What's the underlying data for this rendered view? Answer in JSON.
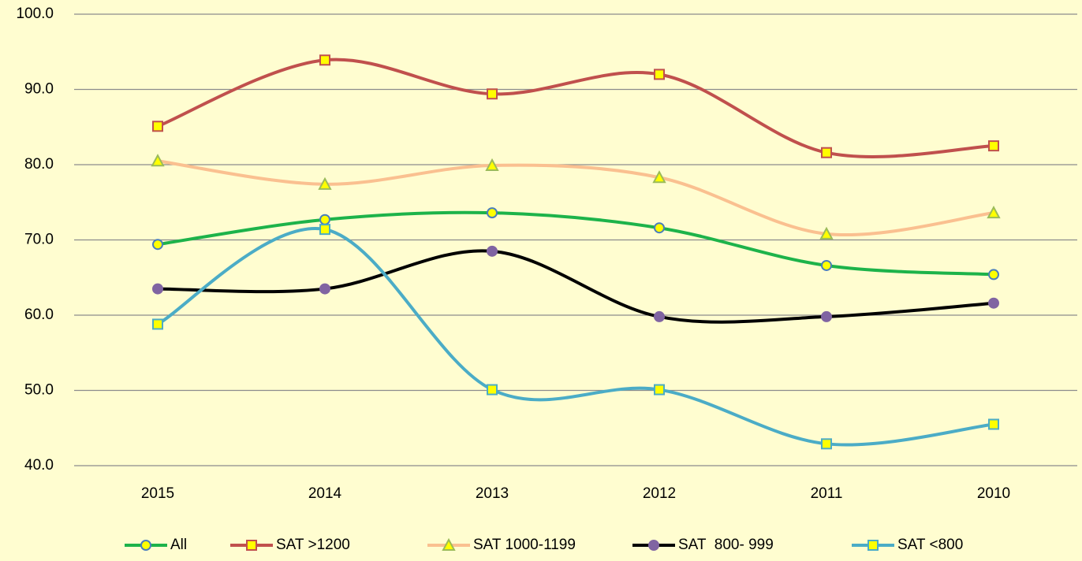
{
  "chart_data": {
    "type": "line",
    "categories": [
      "2015",
      "2014",
      "2013",
      "2012",
      "2011",
      "2010"
    ],
    "ylim": [
      40,
      100
    ],
    "yticks": [
      {
        "value": 40,
        "label": "40.0"
      },
      {
        "value": 50,
        "label": "50.0"
      },
      {
        "value": 60,
        "label": "60.0"
      },
      {
        "value": 70,
        "label": "70.0"
      },
      {
        "value": 80,
        "label": "80.0"
      },
      {
        "value": 90,
        "label": "90.0"
      },
      {
        "value": 100,
        "label": "100.0"
      }
    ],
    "grid": true,
    "smooth": true,
    "legend": "bottom",
    "series": [
      {
        "name": "All",
        "color": "#1db34a",
        "marker": "circle",
        "marker_fill": "#ffff00",
        "marker_edge": "#4a7ebb",
        "values": [
          69.4,
          72.7,
          73.6,
          71.6,
          66.6,
          65.4
        ]
      },
      {
        "name": "SAT >1200",
        "color": "#c0504d",
        "marker": "square",
        "marker_fill": "#ffff00",
        "marker_edge": "#c0504d",
        "values": [
          85.1,
          93.9,
          89.4,
          92.0,
          81.6,
          82.5
        ]
      },
      {
        "name": "SAT 1000-1199",
        "color": "#fac090",
        "marker": "triangle",
        "marker_fill": "#ffff00",
        "marker_edge": "#9bbb59",
        "values": [
          80.5,
          77.4,
          79.9,
          78.3,
          70.8,
          73.6
        ]
      },
      {
        "name": "SAT  800- 999",
        "color": "#000000",
        "marker": "circle",
        "marker_fill": "#8064a2",
        "marker_edge": "#8064a2",
        "values": [
          63.5,
          63.5,
          68.5,
          59.8,
          59.8,
          61.6
        ]
      },
      {
        "name": "SAT <800",
        "color": "#4bacc6",
        "marker": "square",
        "marker_fill": "#ffff00",
        "marker_edge": "#4bacc6",
        "values": [
          58.8,
          71.4,
          50.1,
          50.1,
          42.9,
          45.5
        ]
      }
    ]
  }
}
